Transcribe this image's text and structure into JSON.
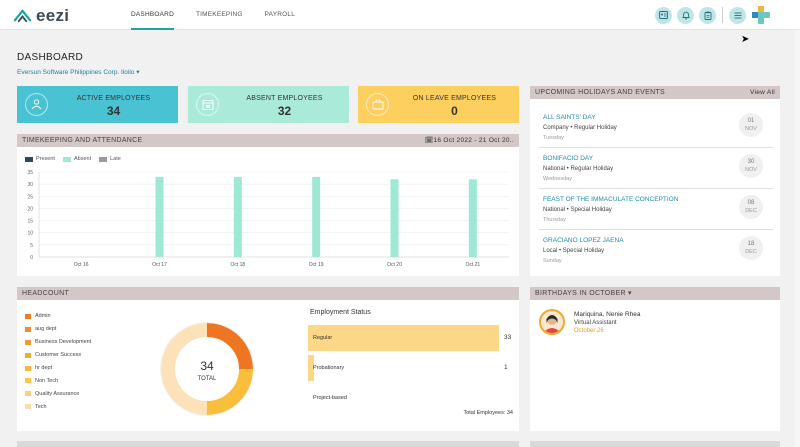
{
  "app": {
    "logo_text": "eezi"
  },
  "nav": {
    "items": [
      "DASHBOARD",
      "TIMEKEEPING",
      "PAYROLL"
    ],
    "active": 0
  },
  "page": {
    "title": "DASHBOARD",
    "company": "Eversun Software Philippines Corp. Iloilo",
    "company_caret": "▾"
  },
  "stats": [
    {
      "label": "ACTIVE EMPLOYEES",
      "value": "34",
      "color": "#49c3d3",
      "icon": "users-icon"
    },
    {
      "label": "ABSENT EMPLOYEES",
      "value": "32",
      "color": "#a9ead8",
      "icon": "calendar-icon"
    },
    {
      "label": "ON LEAVE EMPLOYEES",
      "value": "0",
      "color": "#fdcf5e",
      "icon": "suitcase-icon"
    }
  ],
  "timekeeping": {
    "title": "TIMEKEEPING AND ATTENDANCE",
    "date_range": "16 Oct 2022 - 21 Oct 20..",
    "legend": [
      {
        "name": "Present",
        "color": "#2b4a5c"
      },
      {
        "name": "Absent",
        "color": "#9ee8d6"
      },
      {
        "name": "Late",
        "color": "#9a9a9a"
      }
    ]
  },
  "chart_data": {
    "type": "bar",
    "categories": [
      "Oct 16",
      "Oct 17",
      "Oct 18",
      "Oct 19",
      "Oct 20",
      "Oct 21"
    ],
    "series": [
      {
        "name": "Present",
        "values": [
          0,
          0,
          0,
          0,
          0,
          0
        ]
      },
      {
        "name": "Absent",
        "values": [
          0,
          33,
          33,
          33,
          32,
          32
        ]
      },
      {
        "name": "Late",
        "values": [
          0,
          0,
          0,
          0,
          0,
          0
        ]
      }
    ],
    "y_ticks": [
      "0",
      "5",
      "10",
      "15",
      "20",
      "25",
      "30",
      "35"
    ],
    "ylim": [
      0,
      35
    ],
    "grid": true,
    "legend_position": "top-left"
  },
  "holidays": {
    "title": "UPCOMING HOLIDAYS AND EVENTS",
    "view_all": "View All",
    "items": [
      {
        "name": "ALL SAINTS' DAY",
        "type": "Company • Regular Holiday",
        "weekday": "Tuesday",
        "day": "01",
        "month": "NOV"
      },
      {
        "name": "BONIFACIO DAY",
        "type": "National • Regular Holiday",
        "weekday": "Wednesday",
        "day": "30",
        "month": "NOV"
      },
      {
        "name": "FEAST OF THE IMMACULATE CONCEPTION",
        "type": "National • Special Holiday",
        "weekday": "Thursday",
        "day": "08",
        "month": "DEC"
      },
      {
        "name": "GRACIANO LOPEZ JAENA",
        "type": "Local • Special Holiday",
        "weekday": "Sunday",
        "day": "18",
        "month": "DEC"
      }
    ]
  },
  "headcount": {
    "title": "HEADCOUNT",
    "departments": [
      {
        "name": "Admin",
        "color": "#ee7d2a",
        "icon": "sitemap-icon"
      },
      {
        "name": "aug dept",
        "color": "#f08a2c",
        "icon": "sitemap-icon"
      },
      {
        "name": "Business Development",
        "color": "#f29a31",
        "icon": "sitemap-icon"
      },
      {
        "name": "Customer Success",
        "color": "#f4aa38",
        "icon": "sitemap-icon"
      },
      {
        "name": "hr dept",
        "color": "#f6b83f",
        "icon": "sitemap-icon"
      },
      {
        "name": "Non Tech",
        "color": "#f8c552",
        "icon": "sitemap-icon"
      },
      {
        "name": "Quality Assurance",
        "color": "#fad07a",
        "icon": "sitemap-icon"
      },
      {
        "name": "Tech",
        "color": "#fcdca8",
        "icon": "sitemap-icon"
      }
    ],
    "donut": {
      "total": "34",
      "total_label": "TOTAL",
      "segments": [
        {
          "fraction": 0.25,
          "color": "#ee7522"
        },
        {
          "fraction": 0.25,
          "color": "#f9be3b"
        },
        {
          "fraction": 0.5,
          "color": "#fde1b8"
        }
      ]
    },
    "employment_status": {
      "title": "Employment Status",
      "items": [
        {
          "label": "Regular",
          "count": "33",
          "fraction": 0.97
        },
        {
          "label": "Probationary",
          "count": "1",
          "fraction": 0.03
        },
        {
          "label": "Project-based",
          "count": "",
          "fraction": 0
        }
      ],
      "total_label": "Total Employees: 34"
    }
  },
  "birthdays": {
    "title": "BIRTHDAYS IN OCTOBER",
    "caret": "▾",
    "items": [
      {
        "name": "Mariquina, Nenie Rhea",
        "role": "Virtual Assistant",
        "date": "October 26"
      }
    ]
  }
}
